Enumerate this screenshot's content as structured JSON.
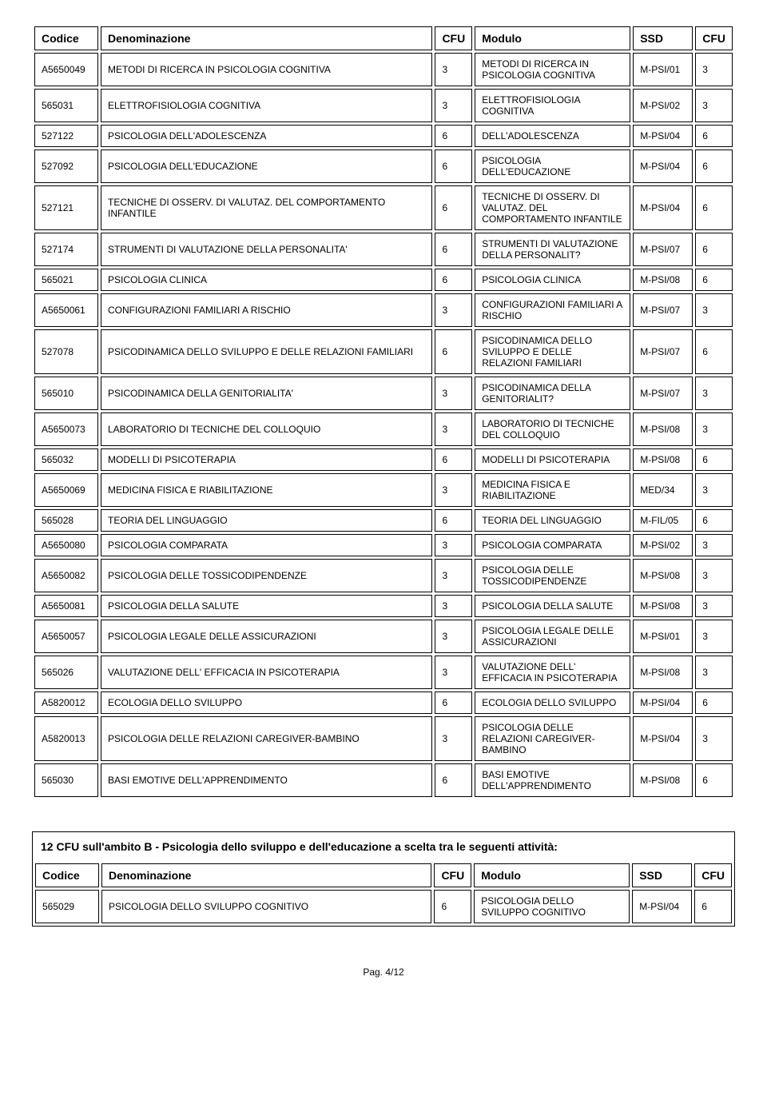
{
  "table1": {
    "headers": [
      "Codice",
      "Denominazione",
      "CFU",
      "Modulo",
      "SSD",
      "CFU"
    ],
    "rows": [
      [
        "A5650049",
        "METODI DI RICERCA IN PSICOLOGIA COGNITIVA",
        "3",
        "METODI DI RICERCA IN PSICOLOGIA COGNITIVA",
        "M-PSI/01",
        "3"
      ],
      [
        "565031",
        "ELETTROFISIOLOGIA COGNITIVA",
        "3",
        "ELETTROFISIOLOGIA COGNITIVA",
        "M-PSI/02",
        "3"
      ],
      [
        "527122",
        "PSICOLOGIA DELL'ADOLESCENZA",
        "6",
        "DELL'ADOLESCENZA",
        "M-PSI/04",
        "6"
      ],
      [
        "527092",
        "PSICOLOGIA DELL'EDUCAZIONE",
        "6",
        "PSICOLOGIA DELL'EDUCAZIONE",
        "M-PSI/04",
        "6"
      ],
      [
        "527121",
        "TECNICHE DI OSSERV. DI VALUTAZ. DEL COMPORTAMENTO INFANTILE",
        "6",
        "TECNICHE DI OSSERV. DI VALUTAZ. DEL COMPORTAMENTO INFANTILE",
        "M-PSI/04",
        "6"
      ],
      [
        "527174",
        "STRUMENTI DI VALUTAZIONE DELLA PERSONALITA'",
        "6",
        "STRUMENTI DI VALUTAZIONE DELLA PERSONALIT?",
        "M-PSI/07",
        "6"
      ],
      [
        "565021",
        "PSICOLOGIA CLINICA",
        "6",
        "PSICOLOGIA CLINICA",
        "M-PSI/08",
        "6"
      ],
      [
        "A5650061",
        "CONFIGURAZIONI FAMILIARI A RISCHIO",
        "3",
        "CONFIGURAZIONI FAMILIARI A RISCHIO",
        "M-PSI/07",
        "3"
      ],
      [
        "527078",
        "PSICODINAMICA DELLO SVILUPPO E DELLE RELAZIONI FAMILIARI",
        "6",
        "PSICODINAMICA DELLO SVILUPPO E DELLE RELAZIONI FAMILIARI",
        "M-PSI/07",
        "6"
      ],
      [
        "565010",
        "PSICODINAMICA DELLA GENITORIALITA'",
        "3",
        "PSICODINAMICA DELLA GENITORIALIT?",
        "M-PSI/07",
        "3"
      ],
      [
        "A5650073",
        "LABORATORIO DI TECNICHE DEL COLLOQUIO",
        "3",
        "LABORATORIO DI TECNICHE DEL COLLOQUIO",
        "M-PSI/08",
        "3"
      ],
      [
        "565032",
        "MODELLI DI PSICOTERAPIA",
        "6",
        "MODELLI DI PSICOTERAPIA",
        "M-PSI/08",
        "6"
      ],
      [
        "A5650069",
        "MEDICINA FISICA E RIABILITAZIONE",
        "3",
        "MEDICINA FISICA E RIABILITAZIONE",
        "MED/34",
        "3"
      ],
      [
        "565028",
        "TEORIA DEL LINGUAGGIO",
        "6",
        "TEORIA DEL LINGUAGGIO",
        "M-FIL/05",
        "6"
      ],
      [
        "A5650080",
        "PSICOLOGIA COMPARATA",
        "3",
        "PSICOLOGIA COMPARATA",
        "M-PSI/02",
        "3"
      ],
      [
        "A5650082",
        "PSICOLOGIA DELLE TOSSICODIPENDENZE",
        "3",
        "PSICOLOGIA DELLE TOSSICODIPENDENZE",
        "M-PSI/08",
        "3"
      ],
      [
        "A5650081",
        "PSICOLOGIA DELLA SALUTE",
        "3",
        "PSICOLOGIA DELLA SALUTE",
        "M-PSI/08",
        "3"
      ],
      [
        "A5650057",
        "PSICOLOGIA LEGALE DELLE ASSICURAZIONI",
        "3",
        "PSICOLOGIA LEGALE DELLE ASSICURAZIONI",
        "M-PSI/01",
        "3"
      ],
      [
        "565026",
        "VALUTAZIONE DELL' EFFICACIA IN PSICOTERAPIA",
        "3",
        "VALUTAZIONE DELL' EFFICACIA IN PSICOTERAPIA",
        "M-PSI/08",
        "3"
      ],
      [
        "A5820012",
        "ECOLOGIA DELLO SVILUPPO",
        "6",
        "ECOLOGIA DELLO SVILUPPO",
        "M-PSI/04",
        "6"
      ],
      [
        "A5820013",
        "PSICOLOGIA DELLE RELAZIONI CAREGIVER-BAMBINO",
        "3",
        "PSICOLOGIA DELLE RELAZIONI CAREGIVER-BAMBINO",
        "M-PSI/04",
        "3"
      ],
      [
        "565030",
        "BASI EMOTIVE DELL'APPRENDIMENTO",
        "6",
        "BASI EMOTIVE DELL'APPRENDIMENTO",
        "M-PSI/08",
        "6"
      ]
    ]
  },
  "section2": {
    "title": "12 CFU sull'ambito B - Psicologia dello sviluppo e dell'educazione a scelta tra le seguenti attività:",
    "headers": [
      "Codice",
      "Denominazione",
      "CFU",
      "Modulo",
      "SSD",
      "CFU"
    ],
    "rows": [
      [
        "565029",
        "PSICOLOGIA DELLO SVILUPPO COGNITIVO",
        "6",
        "PSICOLOGIA DELLO SVILUPPO COGNITIVO",
        "M-PSI/04",
        "6"
      ]
    ]
  },
  "footer": "Pag. 4/12"
}
